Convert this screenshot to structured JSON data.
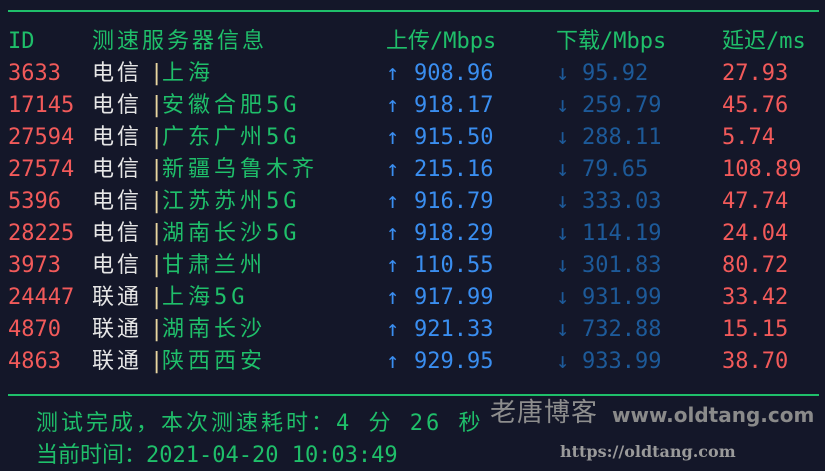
{
  "header": {
    "id": "ID",
    "server": "测速服务器信息",
    "upload": "上传/Mbps",
    "download": "下载/Mbps",
    "latency": "延迟/ms"
  },
  "rows": [
    {
      "id": "3633",
      "isp": "电信",
      "city": "上海",
      "up": "908.96",
      "down": "95.92",
      "lat": "27.93"
    },
    {
      "id": "17145",
      "isp": "电信",
      "city": "安徽合肥5G",
      "up": "918.17",
      "down": "259.79",
      "lat": "45.76"
    },
    {
      "id": "27594",
      "isp": "电信",
      "city": "广东广州5G",
      "up": "915.50",
      "down": "288.11",
      "lat": "5.74"
    },
    {
      "id": "27574",
      "isp": "电信",
      "city": "新疆乌鲁木齐",
      "up": "215.16",
      "down": "79.65",
      "lat": "108.89"
    },
    {
      "id": "5396",
      "isp": "电信",
      "city": "江苏苏州5G",
      "up": "916.79",
      "down": "333.03",
      "lat": "47.74"
    },
    {
      "id": "28225",
      "isp": "电信",
      "city": "湖南长沙5G",
      "up": "918.29",
      "down": "114.19",
      "lat": "24.04"
    },
    {
      "id": "3973",
      "isp": "电信",
      "city": "甘肃兰州",
      "up": "110.55",
      "down": "301.83",
      "lat": "80.72"
    },
    {
      "id": "24447",
      "isp": "联通",
      "city": "上海5G",
      "up": "917.99",
      "down": "931.99",
      "lat": "33.42"
    },
    {
      "id": "4870",
      "isp": "联通",
      "city": "湖南长沙",
      "up": "921.33",
      "down": "732.88",
      "lat": "15.15"
    },
    {
      "id": "4863",
      "isp": "联通",
      "city": "陕西西安",
      "up": "929.95",
      "down": "933.99",
      "lat": "38.70"
    }
  ],
  "icons": {
    "up": "↑",
    "down": "↓",
    "sep": "|"
  },
  "footer": {
    "elapsed": "测试完成，本次测速耗时：4 分 26 秒",
    "time": "当前时间：2021-04-20 10:03:49"
  },
  "watermarks": {
    "diagonal": "www.oldtang.com",
    "cn": "老唐博客",
    "url": "https://oldtang.com"
  },
  "colors": {
    "bg": "#141729",
    "accent": "#1fbf6a",
    "id": "#f25a5a",
    "upload": "#3a8ef0",
    "download": "#1d5a99"
  }
}
